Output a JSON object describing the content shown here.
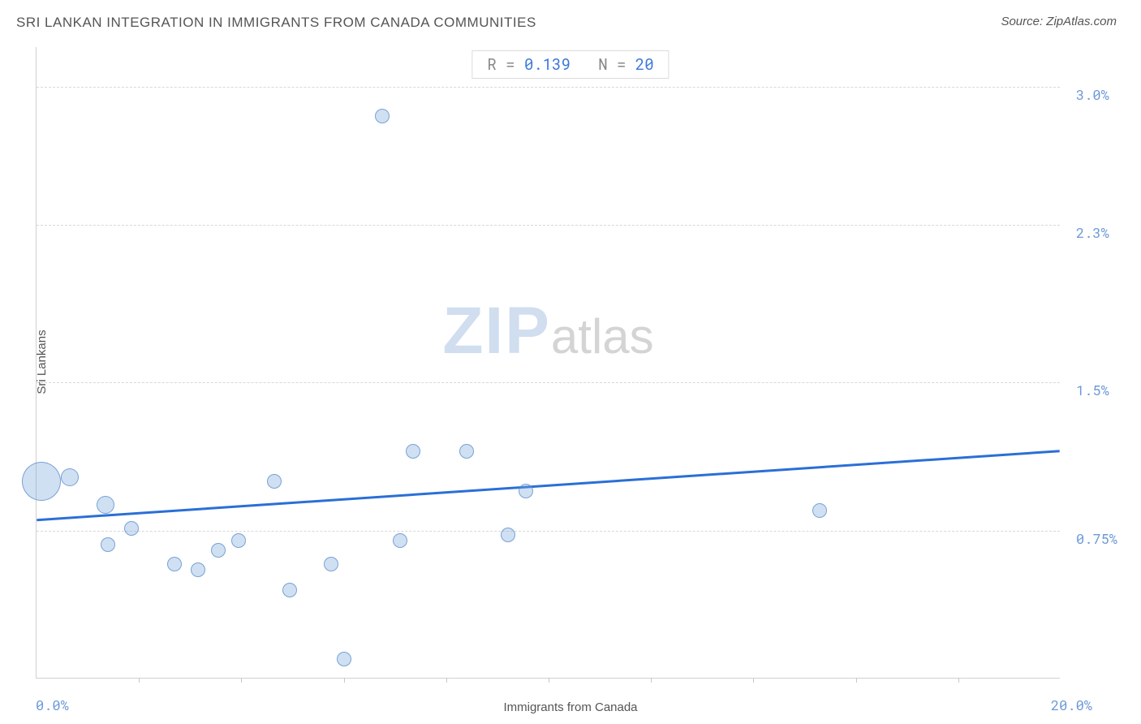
{
  "chart": {
    "type": "scatter",
    "title": "SRI LANKAN INTEGRATION IN IMMIGRANTS FROM CANADA COMMUNITIES",
    "source_label": "Source: ZipAtlas.com",
    "xlabel": "Immigrants from Canada",
    "ylabel": "Sri Lankans",
    "xlim_min": 0.0,
    "xlim_max": 20.0,
    "xlim_min_label": "0.0%",
    "xlim_max_label": "20.0%",
    "ylim_min": 0.0,
    "ylim_max": 3.2,
    "y_gridlines": [
      0.75,
      1.5,
      2.3,
      3.0
    ],
    "y_gridline_labels": [
      "0.75%",
      "1.5%",
      "2.3%",
      "3.0%"
    ],
    "x_tick_step": 2.0,
    "plot_bg": "#ffffff",
    "grid_color": "#d8d8d8",
    "axis_color": "#d0d0d0",
    "bubble_fill": "rgba(120,165,220,0.35)",
    "bubble_stroke": "rgba(90,140,200,0.75)",
    "regression_color": "#2a6fd6",
    "regression_width": 3,
    "label_fontsize": 15,
    "tick_fontsize": 17,
    "tick_color": "#6d99d6",
    "watermark_text_bold": "ZIP",
    "watermark_text_light": "atlas",
    "stats_R_label": "R = ",
    "stats_R_value": "0.139",
    "stats_N_label": "N = ",
    "stats_N_value": "20",
    "data_points": [
      {
        "x": 0.1,
        "y": 1.0,
        "size": 48
      },
      {
        "x": 0.65,
        "y": 1.02,
        "size": 22
      },
      {
        "x": 1.35,
        "y": 0.88,
        "size": 22
      },
      {
        "x": 1.4,
        "y": 0.68,
        "size": 18
      },
      {
        "x": 1.85,
        "y": 0.76,
        "size": 18
      },
      {
        "x": 2.7,
        "y": 0.58,
        "size": 18
      },
      {
        "x": 3.15,
        "y": 0.55,
        "size": 18
      },
      {
        "x": 3.55,
        "y": 0.65,
        "size": 18
      },
      {
        "x": 3.95,
        "y": 0.7,
        "size": 18
      },
      {
        "x": 4.65,
        "y": 1.0,
        "size": 18
      },
      {
        "x": 4.95,
        "y": 0.45,
        "size": 18
      },
      {
        "x": 5.75,
        "y": 0.58,
        "size": 18
      },
      {
        "x": 6.0,
        "y": 0.1,
        "size": 18
      },
      {
        "x": 6.75,
        "y": 2.85,
        "size": 18
      },
      {
        "x": 7.1,
        "y": 0.7,
        "size": 18
      },
      {
        "x": 7.35,
        "y": 1.15,
        "size": 18
      },
      {
        "x": 8.4,
        "y": 1.15,
        "size": 18
      },
      {
        "x": 9.2,
        "y": 0.73,
        "size": 18
      },
      {
        "x": 9.55,
        "y": 0.95,
        "size": 18
      },
      {
        "x": 15.3,
        "y": 0.85,
        "size": 18
      }
    ],
    "regression_y_at_xmin": 0.8,
    "regression_y_at_xmax": 1.15
  }
}
